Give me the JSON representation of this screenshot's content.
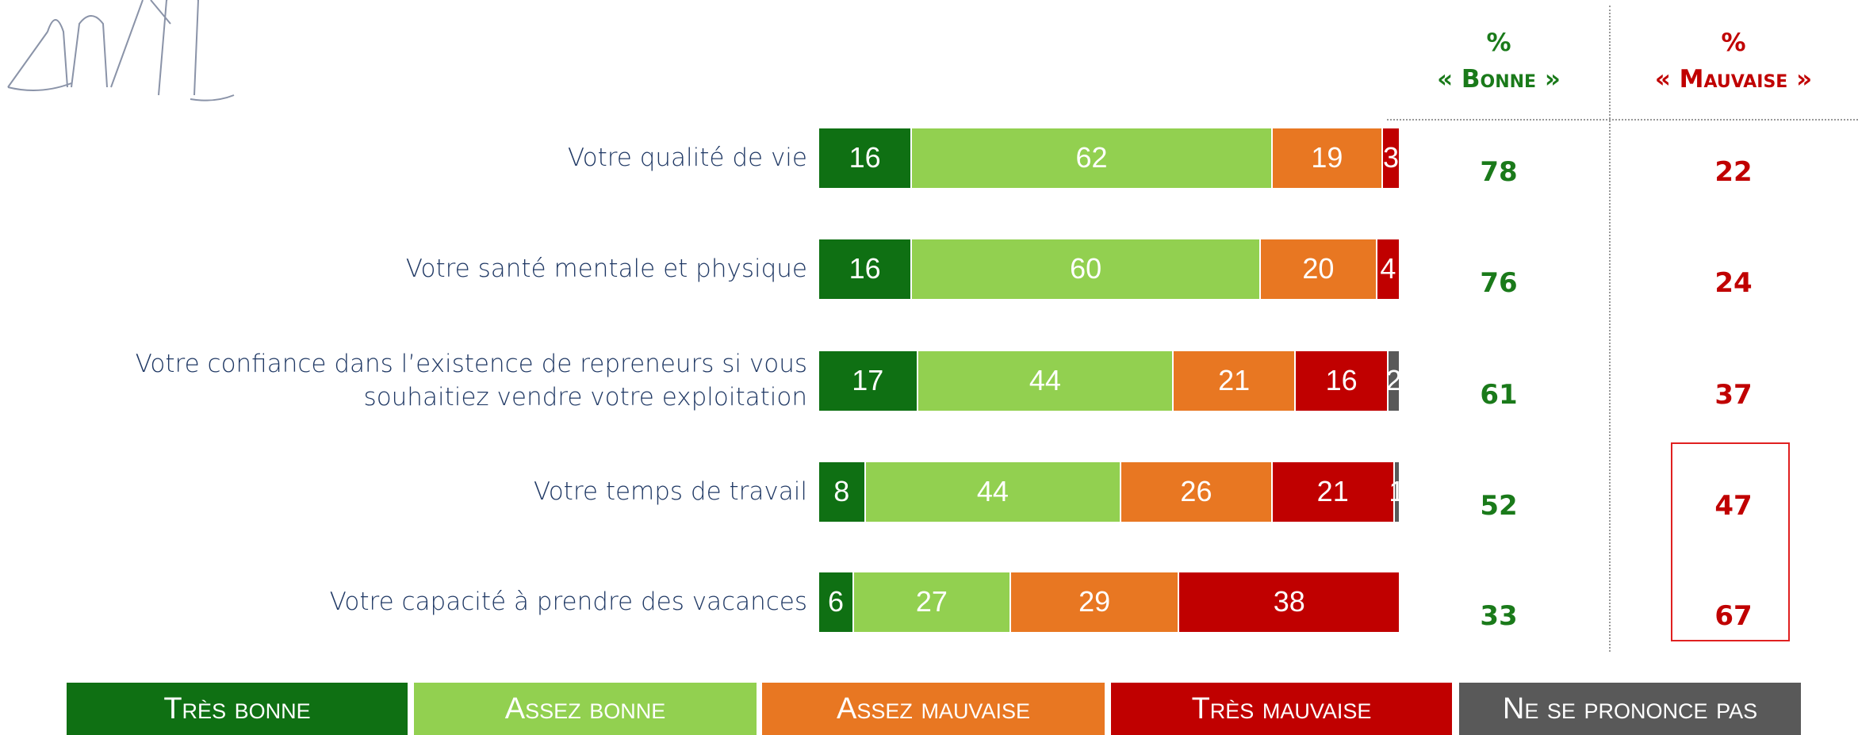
{
  "chart_data": {
    "type": "stacked_bar",
    "orientation": "horizontal",
    "categories": [
      "Votre qualité de vie",
      "Votre santé mentale et physique",
      "Votre confiance dans l’existence de repreneurs si vous souhaitiez vendre votre exploitation",
      "Votre temps de travail",
      "Votre capacité à prendre des vacances"
    ],
    "series": [
      {
        "name": "Très bonne",
        "color": "#0f7013",
        "values": [
          16,
          16,
          17,
          8,
          6
        ]
      },
      {
        "name": "Assez bonne",
        "color": "#92d050",
        "values": [
          62,
          60,
          44,
          44,
          27
        ]
      },
      {
        "name": "Assez mauvaise",
        "color": "#e87722",
        "values": [
          19,
          20,
          21,
          26,
          29
        ]
      },
      {
        "name": "Très mauvaise",
        "color": "#c00000",
        "values": [
          3,
          4,
          16,
          21,
          38
        ]
      },
      {
        "name": "Ne se prononce pas",
        "color": "#595959",
        "values": [
          null,
          null,
          2,
          1,
          null
        ]
      }
    ],
    "xlim": [
      0,
      100
    ],
    "summary_columns": [
      {
        "symbol": "%",
        "title": "« Bonne »",
        "color": "#1a7a1a",
        "values": [
          78,
          76,
          61,
          52,
          33
        ]
      },
      {
        "symbol": "%",
        "title": "« Mauvaise »",
        "color": "#c00000",
        "values": [
          22,
          24,
          37,
          47,
          67
        ]
      }
    ]
  }
}
